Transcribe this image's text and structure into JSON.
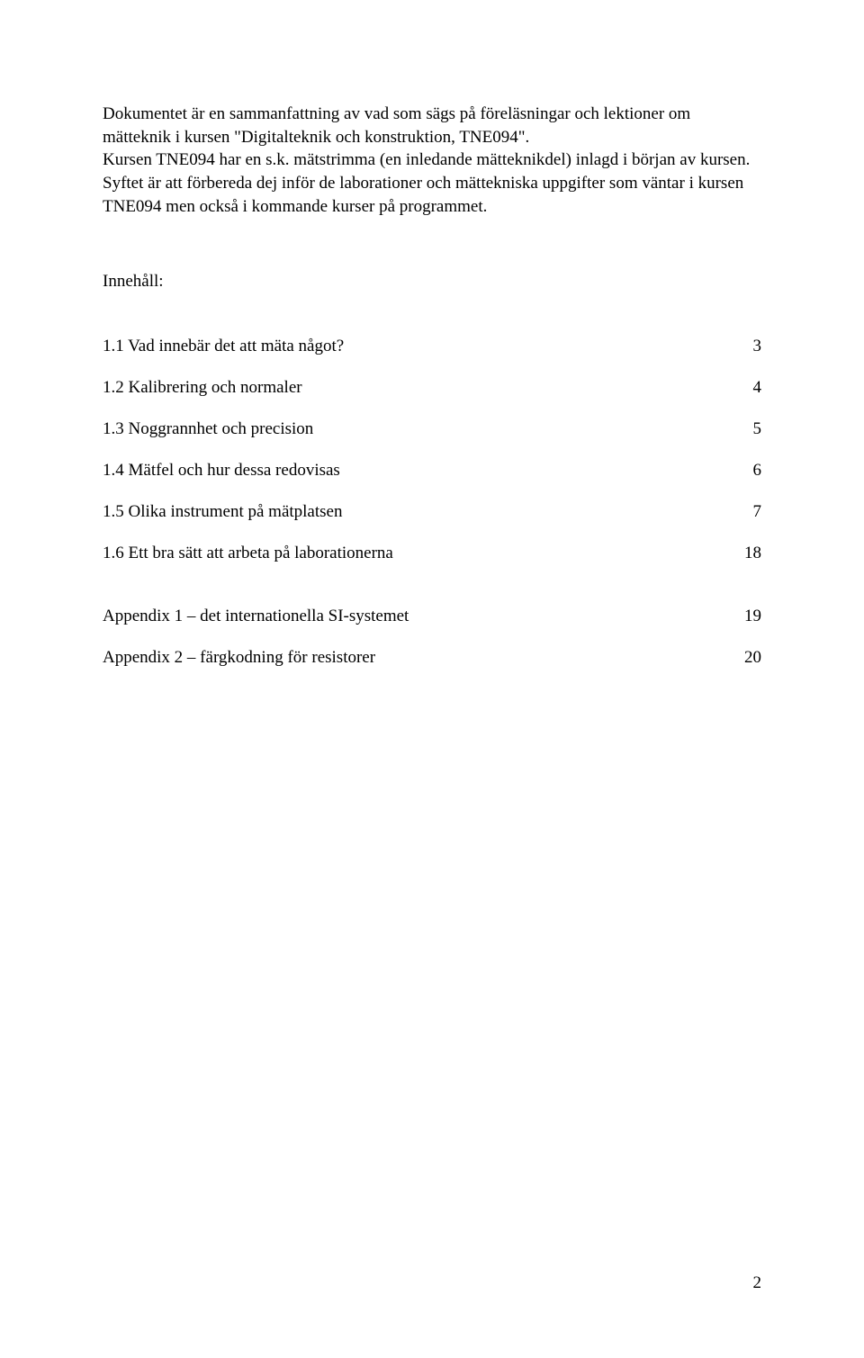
{
  "intro": {
    "p1": "Dokumentet är en sammanfattning av vad som sägs på föreläsningar och lektioner om mätteknik i kursen \"Digitalteknik och konstruktion, TNE094\".",
    "p2": "Kursen TNE094 har en s.k. mätstrimma (en inledande mätteknikdel) inlagd i början av kursen. Syftet är att förbereda dej inför de laborationer och mättekniska uppgifter som väntar i kursen TNE094 men också i kommande kurser på programmet."
  },
  "toc": {
    "title": "Innehåll:",
    "rows": [
      {
        "label": "1.1 Vad innebär det att mäta något?",
        "page": "3"
      },
      {
        "label": "1.2 Kalibrering och normaler",
        "page": "4"
      },
      {
        "label": "1.3 Noggrannhet och precision",
        "page": "5"
      },
      {
        "label": "1.4 Mätfel och hur dessa redovisas",
        "page": "6"
      },
      {
        "label": "1.5 Olika instrument på mätplatsen",
        "page": "7"
      },
      {
        "label": "1.6 Ett bra sätt att arbeta på laborationerna",
        "page": "18"
      }
    ],
    "appendix": [
      {
        "label": "Appendix 1 – det internationella SI-systemet",
        "page": "19"
      },
      {
        "label": "Appendix 2 – färgkodning för resistorer",
        "page": "20"
      }
    ]
  },
  "pageNumber": "2"
}
